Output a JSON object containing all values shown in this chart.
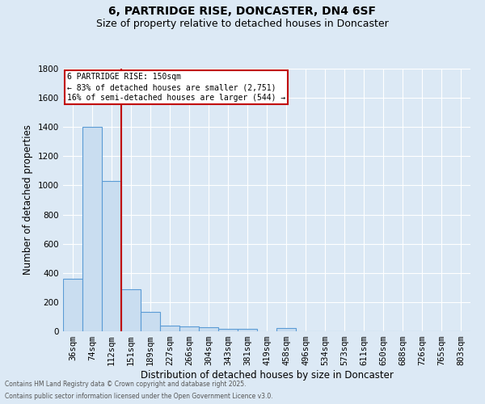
{
  "title1": "6, PARTRIDGE RISE, DONCASTER, DN4 6SF",
  "title2": "Size of property relative to detached houses in Doncaster",
  "xlabel": "Distribution of detached houses by size in Doncaster",
  "ylabel": "Number of detached properties",
  "categories": [
    "36sqm",
    "74sqm",
    "112sqm",
    "151sqm",
    "189sqm",
    "227sqm",
    "266sqm",
    "304sqm",
    "343sqm",
    "381sqm",
    "419sqm",
    "458sqm",
    "496sqm",
    "534sqm",
    "573sqm",
    "611sqm",
    "650sqm",
    "688sqm",
    "726sqm",
    "765sqm",
    "803sqm"
  ],
  "values": [
    360,
    1400,
    1030,
    290,
    135,
    38,
    35,
    25,
    18,
    15,
    0,
    20,
    0,
    0,
    0,
    0,
    0,
    0,
    0,
    0,
    0
  ],
  "bar_color": "#c9ddf0",
  "bar_edge_color": "#5b9bd5",
  "background_color": "#dce9f5",
  "grid_color": "#ffffff",
  "vline_x": 2.5,
  "vline_color": "#c00000",
  "annotation_text": "6 PARTRIDGE RISE: 150sqm\n← 83% of detached houses are smaller (2,751)\n16% of semi-detached houses are larger (544) →",
  "annotation_box_color": "#ffffff",
  "annotation_box_edge": "#c00000",
  "ylim": [
    0,
    1800
  ],
  "yticks": [
    0,
    200,
    400,
    600,
    800,
    1000,
    1200,
    1400,
    1600,
    1800
  ],
  "footer1": "Contains HM Land Registry data © Crown copyright and database right 2025.",
  "footer2": "Contains public sector information licensed under the Open Government Licence v3.0.",
  "title_fontsize": 10,
  "subtitle_fontsize": 9,
  "tick_fontsize": 7.5,
  "ylabel_fontsize": 8.5,
  "xlabel_fontsize": 8.5,
  "ann_fontsize": 7.0,
  "footer_fontsize": 5.5
}
